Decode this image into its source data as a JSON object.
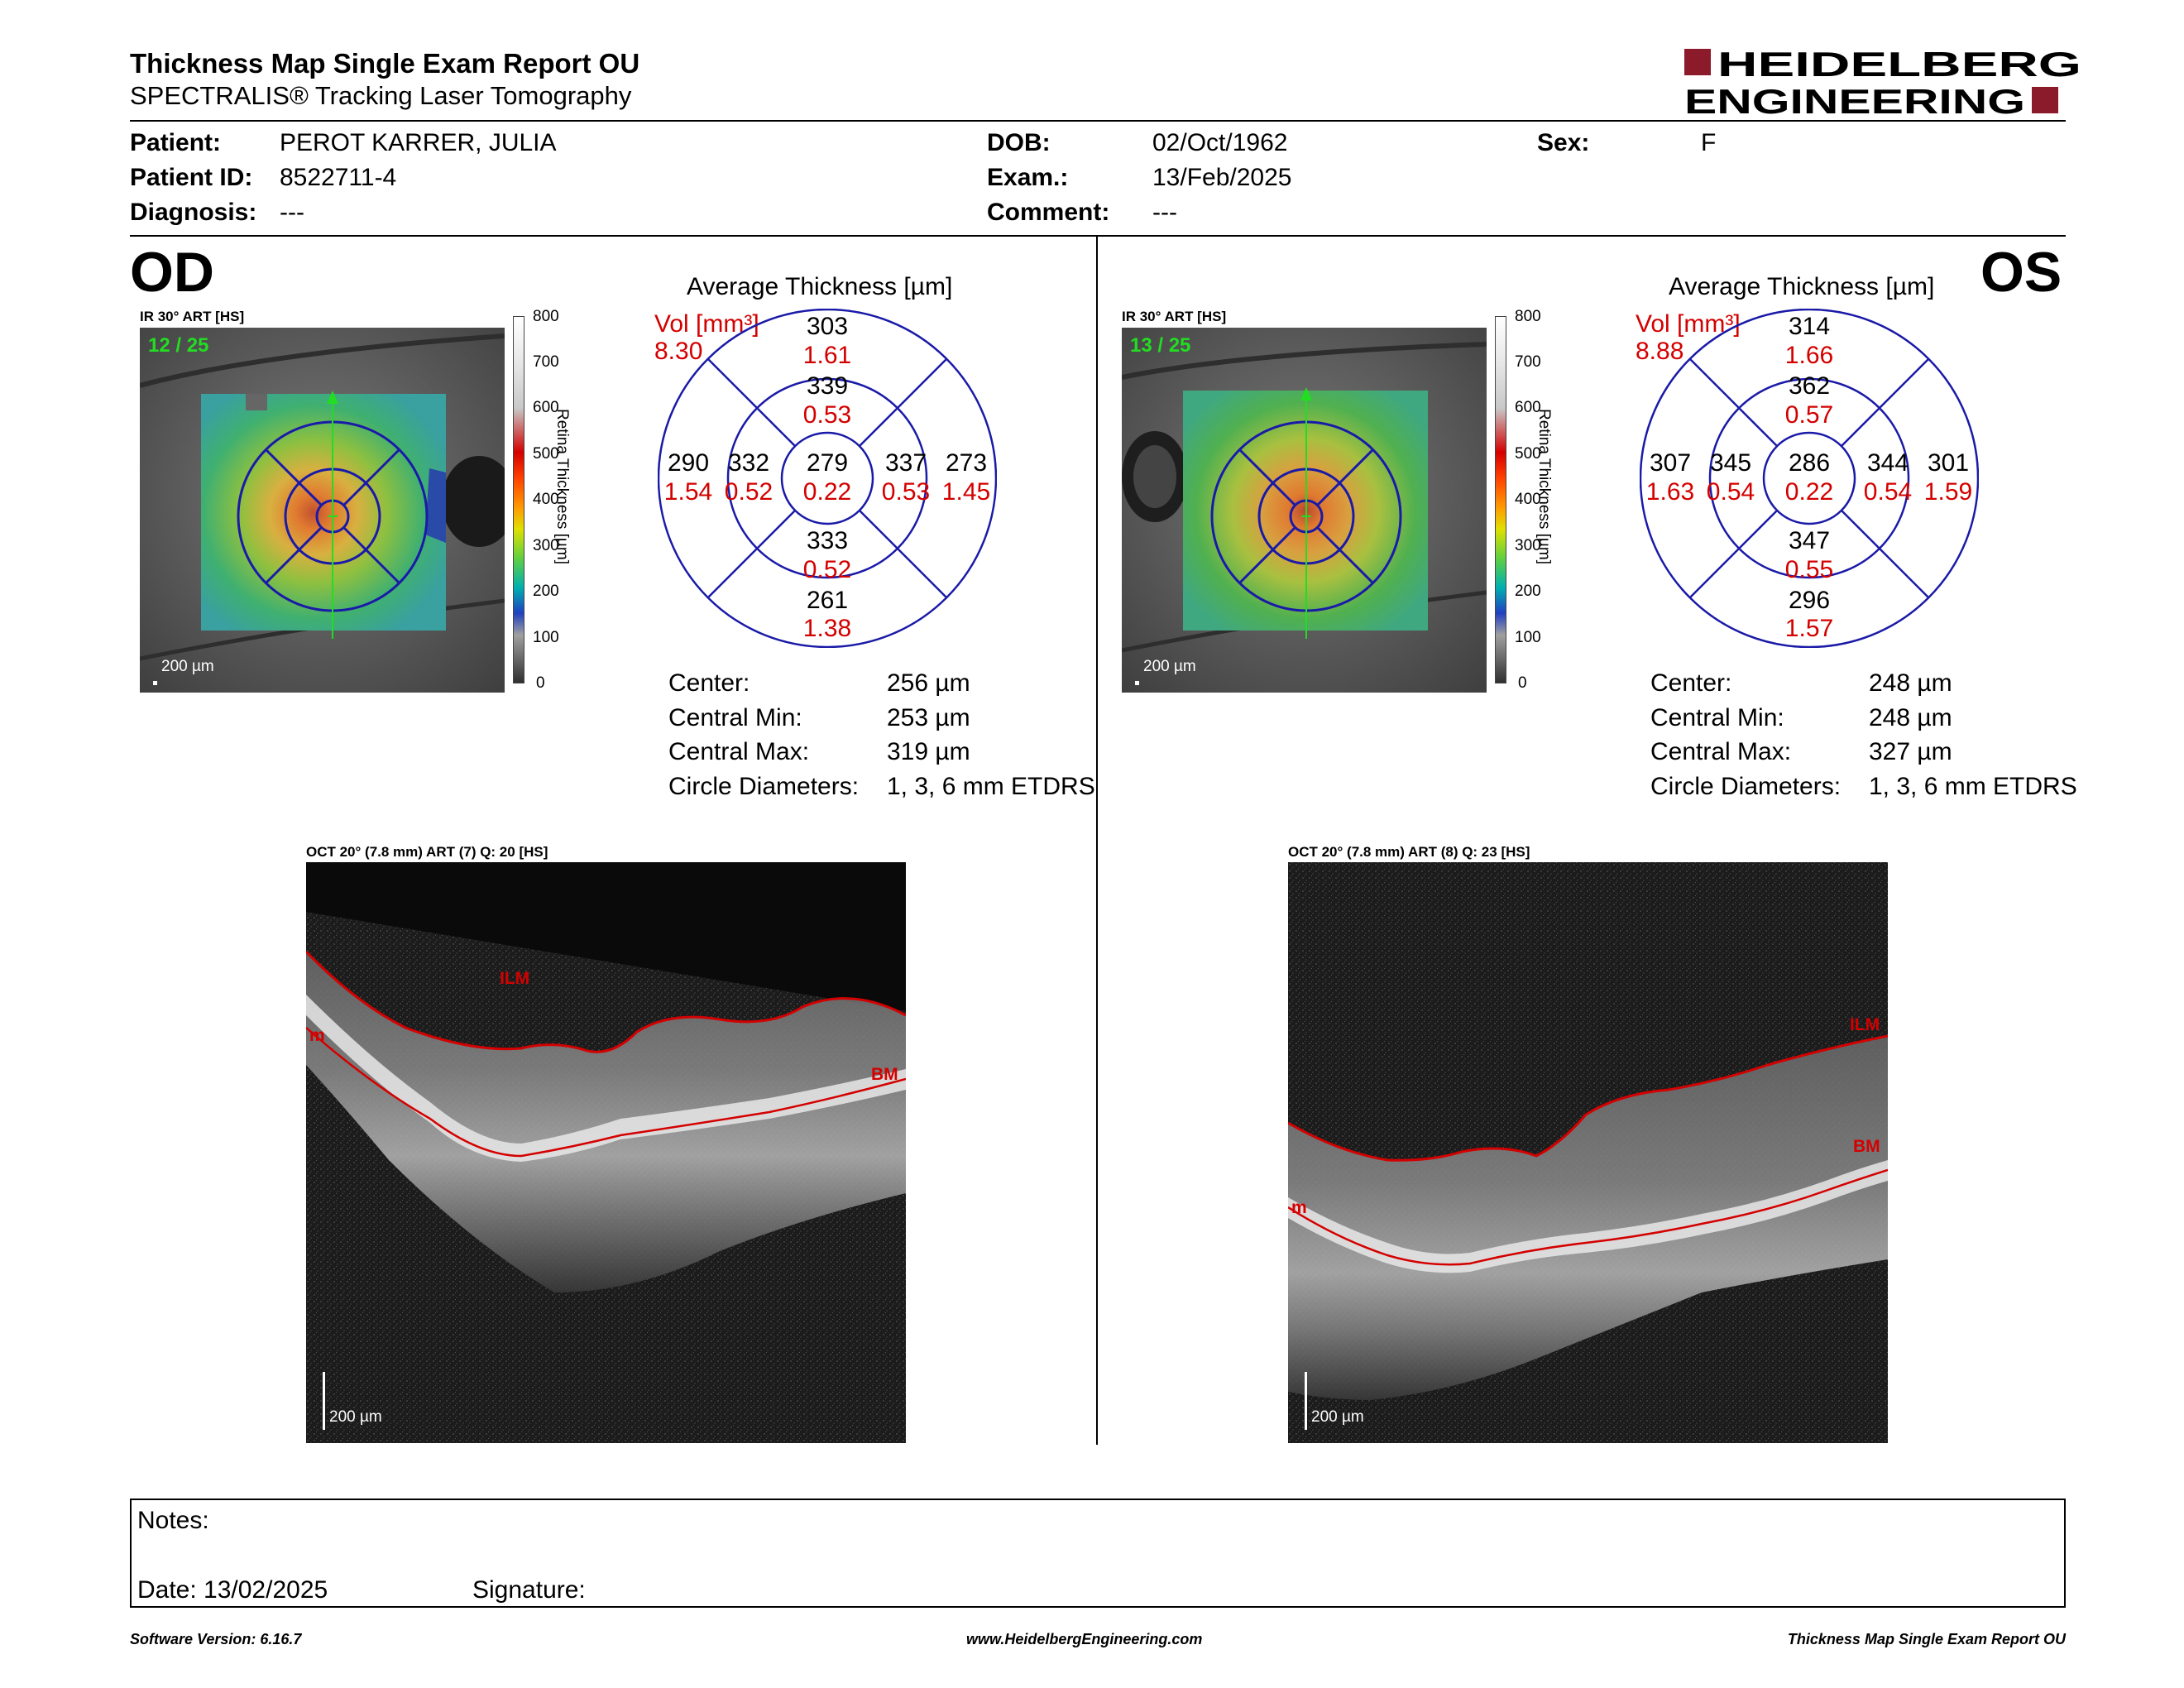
{
  "report": {
    "title": "Thickness Map Single Exam Report OU",
    "subtitle": "SPECTRALIS® Tracking Laser Tomography",
    "logo_line1": "HEIDELBERG",
    "logo_line2": "ENGINEERING"
  },
  "patient": {
    "patient_label": "Patient:",
    "patient_value": "PEROT KARRER, JULIA",
    "patient_id_label": "Patient ID:",
    "patient_id_value": "8522711-4",
    "diagnosis_label": "Diagnosis:",
    "diagnosis_value": "---",
    "dob_label": "DOB:",
    "dob_value": "02/Oct/1962",
    "exam_label": "Exam.:",
    "exam_value": "13/Feb/2025",
    "comment_label": "Comment:",
    "comment_value": "---",
    "sex_label": "Sex:",
    "sex_value": "F"
  },
  "od": {
    "eye": "OD",
    "ir_label": "IR 30° ART [HS]",
    "frame": "12 / 25",
    "scale": "200 µm",
    "colorbar_ticks": [
      "800",
      "700",
      "600",
      "500",
      "400",
      "300",
      "200",
      "100",
      "0"
    ],
    "colorbar_title": "Retina Thickness [µm]",
    "avg_title": "Average Thickness [µm]",
    "vol_label": "Vol [mm³]",
    "vol_total": "8.30",
    "grid": {
      "center": {
        "t": "279",
        "v": "0.22"
      },
      "inner_sup": {
        "t": "339",
        "v": "0.53"
      },
      "inner_inf": {
        "t": "333",
        "v": "0.52"
      },
      "inner_left": {
        "t": "332",
        "v": "0.52"
      },
      "inner_right": {
        "t": "337",
        "v": "0.53"
      },
      "outer_sup": {
        "t": "303",
        "v": "1.61"
      },
      "outer_inf": {
        "t": "261",
        "v": "1.38"
      },
      "outer_left": {
        "t": "290",
        "v": "1.54"
      },
      "outer_right": {
        "t": "273",
        "v": "1.45"
      }
    },
    "stats": {
      "center_label": "Center:",
      "center_value": "256 µm",
      "cmin_label": "Central Min:",
      "cmin_value": "253 µm",
      "cmax_label": "Central Max:",
      "cmax_value": "319 µm",
      "diam_label": "Circle Diameters:",
      "diam_value": "1, 3, 6 mm ETDRS"
    },
    "oct_label": "OCT 20° (7.8 mm) ART (7) Q: 20 [HS]",
    "oct_scale": "200 µm",
    "ilm": "ILM",
    "bm": "BM",
    "m": "m"
  },
  "os": {
    "eye": "OS",
    "ir_label": "IR 30° ART [HS]",
    "frame": "13 / 25",
    "scale": "200 µm",
    "colorbar_ticks": [
      "800",
      "700",
      "600",
      "500",
      "400",
      "300",
      "200",
      "100",
      "0"
    ],
    "colorbar_title": "Retina Thickness [µm]",
    "avg_title": "Average Thickness [µm]",
    "vol_label": "Vol [mm³]",
    "vol_total": "8.88",
    "grid": {
      "center": {
        "t": "286",
        "v": "0.22"
      },
      "inner_sup": {
        "t": "362",
        "v": "0.57"
      },
      "inner_inf": {
        "t": "347",
        "v": "0.55"
      },
      "inner_left": {
        "t": "345",
        "v": "0.54"
      },
      "inner_right": {
        "t": "344",
        "v": "0.54"
      },
      "outer_sup": {
        "t": "314",
        "v": "1.66"
      },
      "outer_inf": {
        "t": "296",
        "v": "1.57"
      },
      "outer_left": {
        "t": "307",
        "v": "1.63"
      },
      "outer_right": {
        "t": "301",
        "v": "1.59"
      }
    },
    "stats": {
      "center_label": "Center:",
      "center_value": "248 µm",
      "cmin_label": "Central Min:",
      "cmin_value": "248 µm",
      "cmax_label": "Central Max:",
      "cmax_value": "327 µm",
      "diam_label": "Circle Diameters:",
      "diam_value": "1, 3, 6 mm ETDRS"
    },
    "oct_label": "OCT 20° (7.8 mm) ART (8) Q: 23 [HS]",
    "oct_scale": "200 µm",
    "ilm": "ILM",
    "bm": "BM",
    "m": "m"
  },
  "notes": {
    "notes_label": "Notes:",
    "date_label": "Date: 13/02/2025",
    "signature_label": "Signature:"
  },
  "footer": {
    "left": "Software Version: 6.16.7",
    "center": "www.HeidelbergEngineering.com",
    "right": "Thickness Map Single Exam Report OU"
  },
  "colors": {
    "brand": "#8b1a2b",
    "grid_blue": "#1a1aa8",
    "volume_red": "#d40000",
    "frame_green": "#22dd22"
  }
}
